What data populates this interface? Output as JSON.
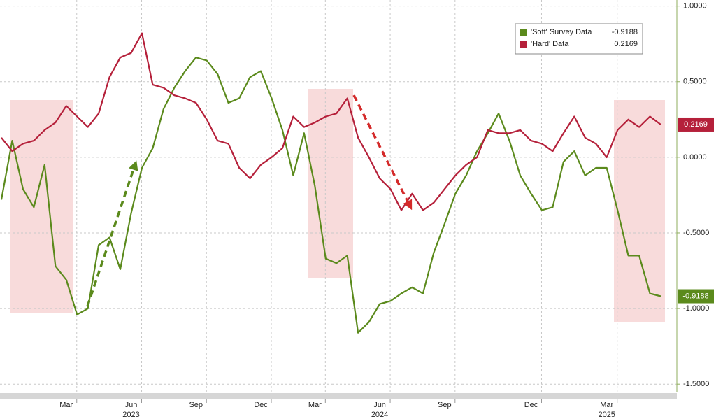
{
  "chart_data": {
    "type": "line",
    "categories": [
      null,
      null,
      null,
      null,
      null,
      null,
      "Mar",
      null,
      null,
      null,
      null,
      null,
      "Jun",
      null,
      null,
      null,
      null,
      null,
      "Sep",
      null,
      null,
      null,
      null,
      null,
      "Dec",
      null,
      null,
      null,
      null,
      "Mar",
      null,
      null,
      null,
      null,
      null,
      "Jun",
      null,
      null,
      null,
      null,
      null,
      "Sep",
      null,
      null,
      null,
      null,
      null,
      null,
      null,
      "Dec",
      null,
      null,
      null,
      null,
      null,
      null,
      "Mar",
      null,
      null,
      null,
      null,
      null
    ],
    "year_categories": [
      null,
      null,
      null,
      null,
      null,
      null,
      null,
      null,
      null,
      null,
      null,
      null,
      "2023",
      null,
      null,
      null,
      null,
      null,
      null,
      null,
      null,
      null,
      null,
      null,
      null,
      null,
      null,
      null,
      null,
      null,
      null,
      null,
      null,
      null,
      null,
      "2024",
      null,
      null,
      null,
      null,
      null,
      null,
      null,
      null,
      null,
      null,
      null,
      null,
      null,
      null,
      null,
      null,
      null,
      null,
      null,
      null,
      "2025",
      null,
      null,
      null,
      null,
      null
    ],
    "series": [
      {
        "name": "'Soft' Survey Data",
        "color": "#5b8a1c",
        "values": [
          -0.28,
          0.11,
          -0.21,
          -0.33,
          -0.05,
          -0.72,
          -0.81,
          -1.04,
          -1.0,
          -0.58,
          -0.53,
          -0.74,
          -0.37,
          -0.07,
          0.06,
          0.32,
          0.46,
          0.57,
          0.66,
          0.64,
          0.55,
          0.36,
          0.39,
          0.53,
          0.57,
          0.39,
          0.18,
          -0.12,
          0.16,
          -0.19,
          -0.67,
          -0.7,
          -0.65,
          -1.16,
          -1.09,
          -0.97,
          -0.95,
          -0.9,
          -0.86,
          -0.9,
          -0.63,
          -0.44,
          -0.24,
          -0.12,
          0.04,
          0.16,
          0.29,
          0.11,
          -0.12,
          -0.24,
          -0.35,
          -0.33,
          -0.03,
          0.04,
          -0.12,
          -0.07,
          -0.07,
          -0.35,
          -0.65,
          -0.65,
          -0.9,
          -0.9188
        ]
      },
      {
        "name": "'Hard' Data",
        "color": "#b5203a",
        "values": [
          0.13,
          0.04,
          0.09,
          0.11,
          0.18,
          0.23,
          0.34,
          0.27,
          0.2,
          0.29,
          0.53,
          0.66,
          0.69,
          0.82,
          0.48,
          0.46,
          0.41,
          0.39,
          0.36,
          0.25,
          0.11,
          0.09,
          -0.07,
          -0.14,
          -0.05,
          0,
          0.06,
          0.27,
          0.2,
          0.23,
          0.27,
          0.29,
          0.39,
          0.13,
          0,
          -0.14,
          -0.21,
          -0.35,
          -0.24,
          -0.35,
          -0.3,
          -0.21,
          -0.12,
          -0.05,
          0,
          0.18,
          0.16,
          0.16,
          0.18,
          0.11,
          0.09,
          0.04,
          0.16,
          0.27,
          0.13,
          0.09,
          0,
          0.18,
          0.25,
          0.2,
          0.27,
          0.2169
        ]
      }
    ],
    "ylim": [
      -1.55,
      1.04
    ],
    "yticks": [
      {
        "value": -1.5,
        "label": "-1.5000"
      },
      {
        "value": -1,
        "label": "-1.0000"
      },
      {
        "value": -0.5,
        "label": "-0.5000"
      },
      {
        "value": 0,
        "label": "0.0000"
      },
      {
        "value": 0.5,
        "label": "0.5000"
      },
      {
        "value": 1,
        "label": "1.0000"
      }
    ],
    "grid": true,
    "legend": "top-right"
  }
}
